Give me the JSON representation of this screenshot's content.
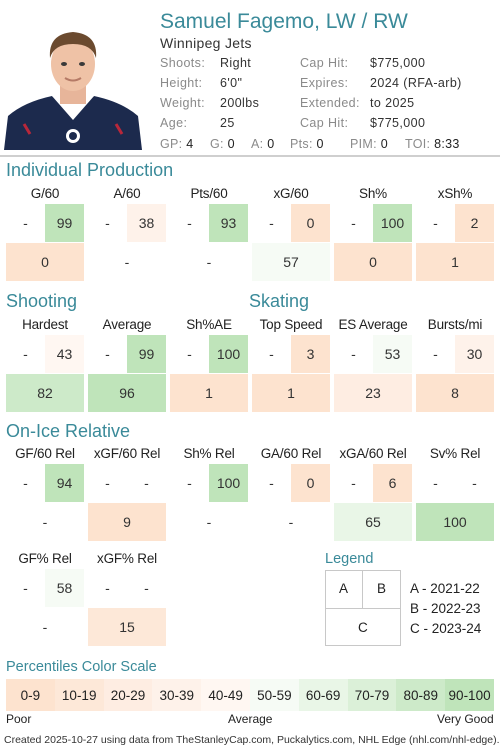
{
  "player": {
    "name": "Samuel Fagemo, LW / RW",
    "team": "Winnipeg Jets",
    "shoots_label": "Shoots:",
    "shoots": "Right",
    "height_label": "Height:",
    "height": "6'0\"",
    "weight_label": "Weight:",
    "weight": "200lbs",
    "age_label": "Age:",
    "age": "25",
    "caphit_label": "Cap Hit:",
    "caphit": "$775,000",
    "expires_label": "Expires:",
    "expires": "2024 (RFA-arb)",
    "extended_label": "Extended:",
    "extended": "to 2025",
    "caphit2_label": "Cap Hit:",
    "caphit2": "$775,000"
  },
  "statline": {
    "gp_label": "GP:",
    "gp": "4",
    "g_label": "G:",
    "g": "0",
    "a_label": "A:",
    "a": "0",
    "pts_label": "Pts:",
    "pts": "0",
    "pim_label": "PIM:",
    "pim": "0",
    "toi_label": "TOI:",
    "toi": "8:33"
  },
  "sections": {
    "production": "Individual Production",
    "shooting": "Shooting",
    "skating": "Skating",
    "onice": "On-Ice Relative",
    "legend": "Legend",
    "scale": "Percentiles Color Scale"
  },
  "production": [
    {
      "label": "G/60",
      "a": "-",
      "b": "99",
      "c": "0"
    },
    {
      "label": "A/60",
      "a": "-",
      "b": "38",
      "c": "-"
    },
    {
      "label": "Pts/60",
      "a": "-",
      "b": "93",
      "c": "-"
    },
    {
      "label": "xG/60",
      "a": "-",
      "b": "0",
      "c": "57"
    },
    {
      "label": "Sh%",
      "a": "-",
      "b": "100",
      "c": "0"
    },
    {
      "label": "xSh%",
      "a": "-",
      "b": "2",
      "c": "1"
    }
  ],
  "shooting": [
    {
      "label": "Hardest",
      "a": "-",
      "b": "43",
      "c": "82"
    },
    {
      "label": "Average",
      "a": "-",
      "b": "99",
      "c": "96"
    },
    {
      "label": "Sh%AE",
      "a": "-",
      "b": "100",
      "c": "1"
    }
  ],
  "skating": [
    {
      "label": "Top Speed",
      "a": "-",
      "b": "3",
      "c": "1"
    },
    {
      "label": "ES Average",
      "a": "-",
      "b": "53",
      "c": "23"
    },
    {
      "label": "Bursts/mi",
      "a": "-",
      "b": "30",
      "c": "8"
    }
  ],
  "onice": [
    {
      "label": "GF/60 Rel",
      "a": "-",
      "b": "94",
      "c": "-"
    },
    {
      "label": "xGF/60 Rel",
      "a": "-",
      "b": "-",
      "c": "9"
    },
    {
      "label": "Sh% Rel",
      "a": "-",
      "b": "100",
      "c": "-"
    },
    {
      "label": "GA/60 Rel",
      "a": "-",
      "b": "0",
      "c": "-"
    },
    {
      "label": "xGA/60 Rel",
      "a": "-",
      "b": "6",
      "c": "65"
    },
    {
      "label": "Sv% Rel",
      "a": "-",
      "b": "-",
      "c": "100"
    }
  ],
  "onice2": [
    {
      "label": "GF% Rel",
      "a": "-",
      "b": "58",
      "c": "-"
    },
    {
      "label": "xGF% Rel",
      "a": "-",
      "b": "-",
      "c": "15"
    }
  ],
  "legend": {
    "a": "A",
    "b": "B",
    "c": "C",
    "a_text": "A - 2021-22",
    "b_text": "B - 2022-23",
    "c_text": "C - 2023-24"
  },
  "scale": {
    "cells": [
      {
        "label": "0-9",
        "color": "#fde3cf"
      },
      {
        "label": "10-19",
        "color": "#fde8d8"
      },
      {
        "label": "20-29",
        "color": "#feede2"
      },
      {
        "label": "30-39",
        "color": "#fef2ea"
      },
      {
        "label": "40-49",
        "color": "#fff7f2"
      },
      {
        "label": "50-59",
        "color": "#f6fbf5"
      },
      {
        "label": "60-69",
        "color": "#e9f6e7"
      },
      {
        "label": "70-79",
        "color": "#dbf0d8"
      },
      {
        "label": "80-89",
        "color": "#cdeac9"
      },
      {
        "label": "90-100",
        "color": "#bfe4ba"
      }
    ],
    "poor": "Poor",
    "average": "Average",
    "very_good": "Very Good"
  },
  "footer": "Created 2025-10-27 using data from TheStanleyCap.com, Puckalytics.com, NHL Edge (nhl.com/nhl-edge)."
}
